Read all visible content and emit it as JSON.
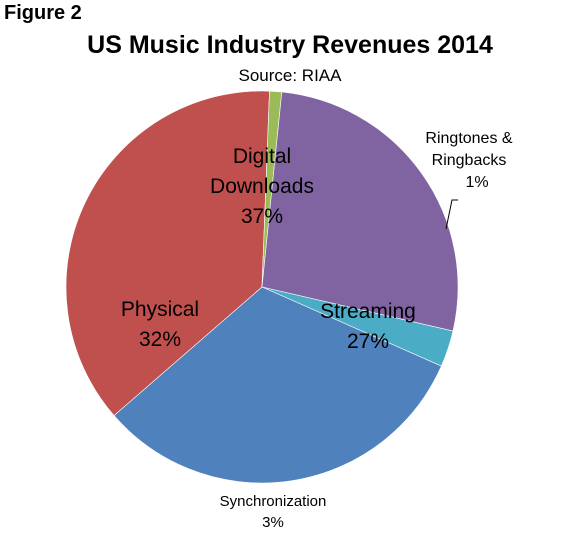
{
  "figure_label": "Figure 2",
  "chart_data": {
    "type": "pie",
    "title": "US Music Industry Revenues 2014",
    "subtitle": "Source: RIAA",
    "slices": [
      {
        "label": "Digital Downloads",
        "value": 37,
        "pct_text": "37%",
        "color": "#C0504D",
        "name_lines": [
          "Digital",
          "Downloads"
        ]
      },
      {
        "label": "Ringtones & Ringbacks",
        "value": 1,
        "pct_text": "1%",
        "color": "#9BBB59",
        "name_lines": [
          "Ringtones &",
          "Ringbacks"
        ]
      },
      {
        "label": "Streaming",
        "value": 27,
        "pct_text": "27%",
        "color": "#8064A2",
        "name_lines": [
          "Streaming"
        ]
      },
      {
        "label": "Synchronization",
        "value": 3,
        "pct_text": "3%",
        "color": "#4BACC6",
        "name_lines": [
          "Synchronization"
        ]
      },
      {
        "label": "Physical",
        "value": 32,
        "pct_text": "32%",
        "color": "#4F81BD",
        "name_lines": [
          "Physical"
        ]
      }
    ]
  }
}
